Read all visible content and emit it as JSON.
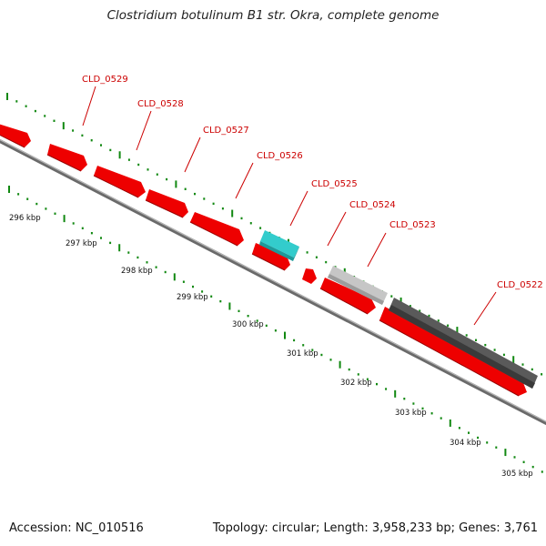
{
  "title": "Clostridium botulinum B1 str. Okra, complete genome",
  "footer": {
    "accession": "Accession: NC_010516",
    "topology": "Topology: circular; Length: 3,958,233 bp; Genes: 3,761"
  },
  "colors": {
    "forward_gene": "#ee0000",
    "highlight_gene": "#33cccc",
    "light_gray_gene": "#c6c6c6",
    "dark_gray_gene": "#5a5a5a",
    "backbone": "#888888",
    "label": "#cc0000",
    "dots": "#118811"
  },
  "scale_ticks": [
    {
      "label": "296 kbp"
    },
    {
      "label": "297 kbp"
    },
    {
      "label": "298 kbp"
    },
    {
      "label": "299 kbp"
    },
    {
      "label": "300 kbp"
    },
    {
      "label": "301 kbp"
    },
    {
      "label": "302 kbp"
    },
    {
      "label": "303 kbp"
    },
    {
      "label": "304 kbp"
    },
    {
      "label": "305 kbp"
    }
  ],
  "gene_labels": [
    {
      "label": "CLD_0529"
    },
    {
      "label": "CLD_0528"
    },
    {
      "label": "CLD_0527"
    },
    {
      "label": "CLD_0526"
    },
    {
      "label": "CLD_0525"
    },
    {
      "label": "CLD_0524"
    },
    {
      "label": "CLD_0523"
    },
    {
      "label": "CLD_0522"
    }
  ]
}
